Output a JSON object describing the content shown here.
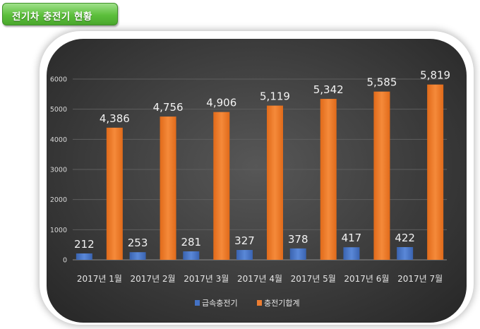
{
  "header": {
    "title": "전기차 충전기 현황"
  },
  "chart_data": {
    "type": "bar",
    "title": "",
    "xlabel": "",
    "ylabel": "",
    "ylim": [
      0,
      6000
    ],
    "yticks": [
      "0",
      "1000",
      "2000",
      "3000",
      "4000",
      "5000",
      "6000"
    ],
    "grid": true,
    "legend_position": "bottom",
    "categories": [
      "2017년 1월",
      "2017년 2월",
      "2017년 3월",
      "2017년 4월",
      "2017년 5월",
      "2017년 6월",
      "2017년 7월"
    ],
    "series": [
      {
        "name": "급속충전기",
        "color": "#4472c4",
        "values": [
          212,
          253,
          281,
          327,
          378,
          417,
          422
        ],
        "labels": [
          "212",
          "253",
          "281",
          "327",
          "378",
          "417",
          "422"
        ]
      },
      {
        "name": "충전기합계",
        "color": "#ed7d31",
        "values": [
          4386,
          4756,
          4906,
          5119,
          5342,
          5585,
          5819
        ],
        "labels": [
          "4,386",
          "4,756",
          "4,906",
          "5,119",
          "5,342",
          "5,585",
          "5,819"
        ]
      }
    ]
  }
}
